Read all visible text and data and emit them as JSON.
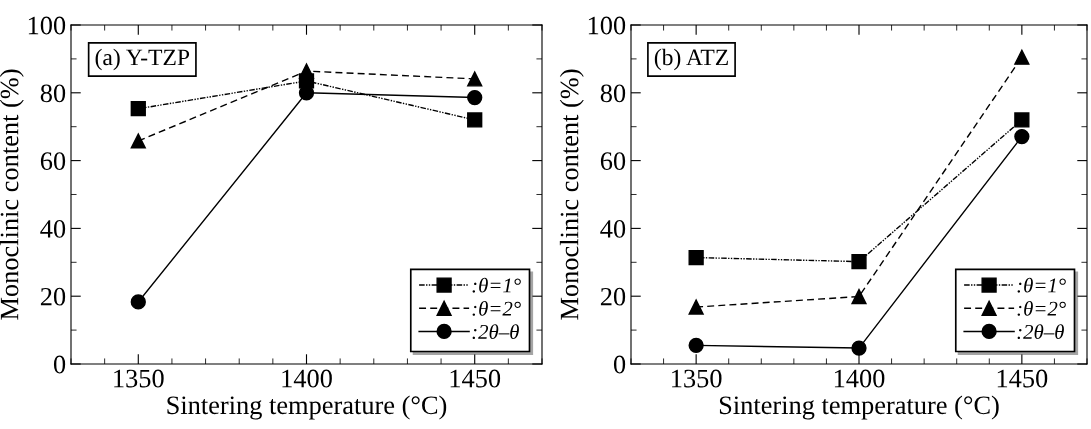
{
  "chart_data": [
    {
      "type": "line",
      "xlabel": "Sintering temperature (°C)",
      "ylabel": "Monoclinic content (%)",
      "annotations": [
        "(a) Y-TZP"
      ],
      "x": [
        1350,
        1400,
        1450
      ],
      "xlim": [
        1330,
        1470
      ],
      "xticks": [
        1350,
        1400,
        1450
      ],
      "ylim": [
        0,
        100
      ],
      "yticks": [
        0,
        20,
        40,
        60,
        80,
        100
      ],
      "legend": "bottom right",
      "grid": false,
      "series": [
        {
          "name": ":θ=1°",
          "color": "#000000",
          "marker": "square",
          "line_style": "dashdot",
          "values": [
            75.3,
            83.5,
            72.0
          ]
        },
        {
          "name": ":θ=2°",
          "color": "#000000",
          "marker": "triangle",
          "line_style": "dashed",
          "values": [
            65.8,
            86.4,
            84.1
          ]
        },
        {
          "name": ":2θ–θ",
          "color": "#000000",
          "marker": "circle",
          "line_style": "solid",
          "values": [
            18.3,
            80.0,
            78.6
          ]
        }
      ]
    },
    {
      "type": "line",
      "xlabel": "Sintering temperature (°C)",
      "ylabel": "Monoclinic content (%)",
      "annotations": [
        "(b) ATZ"
      ],
      "x": [
        1350,
        1400,
        1450
      ],
      "xlim": [
        1330,
        1470
      ],
      "xticks": [
        1350,
        1400,
        1450
      ],
      "ylim": [
        0,
        100
      ],
      "yticks": [
        0,
        20,
        40,
        60,
        80,
        100
      ],
      "legend": "bottom right",
      "grid": false,
      "series": [
        {
          "name": ":θ=1°",
          "color": "#000000",
          "marker": "square",
          "line_style": "dashdot",
          "values": [
            31.4,
            30.2,
            72.0
          ]
        },
        {
          "name": ":θ=2°",
          "color": "#000000",
          "marker": "triangle",
          "line_style": "dashed",
          "values": [
            16.8,
            19.9,
            90.5
          ]
        },
        {
          "name": ":2θ–θ",
          "color": "#000000",
          "marker": "circle",
          "line_style": "solid",
          "values": [
            5.5,
            4.7,
            67.1
          ]
        }
      ]
    }
  ]
}
